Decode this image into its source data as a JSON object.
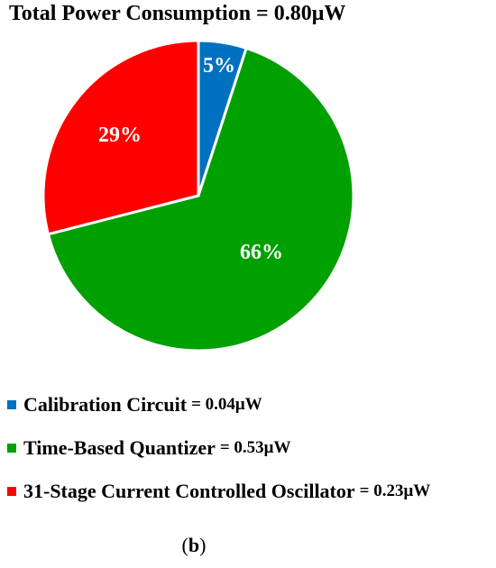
{
  "title_prefix": "Total Power Consumption",
  "title_value": "= 0.80μW",
  "chart_data": {
    "type": "pie",
    "title": "Total Power Consumption = 0.80μW",
    "slices": [
      {
        "label": "Calibration Circuit",
        "value": 5,
        "value_label": "5%",
        "power": "= 0.04μW",
        "color": "#0070c0"
      },
      {
        "label": "Time-Based Quantizer",
        "value": 66,
        "value_label": "66%",
        "power": "= 0.53μW",
        "color": "#00a000"
      },
      {
        "label": "31-Stage Current Controlled Oscillator",
        "value": 29,
        "value_label": "29%",
        "power": "= 0.23μW",
        "color": "#ff0000"
      }
    ],
    "legend_position": "bottom"
  },
  "caption": {
    "open": "(",
    "letter": "b",
    "close": ")"
  }
}
